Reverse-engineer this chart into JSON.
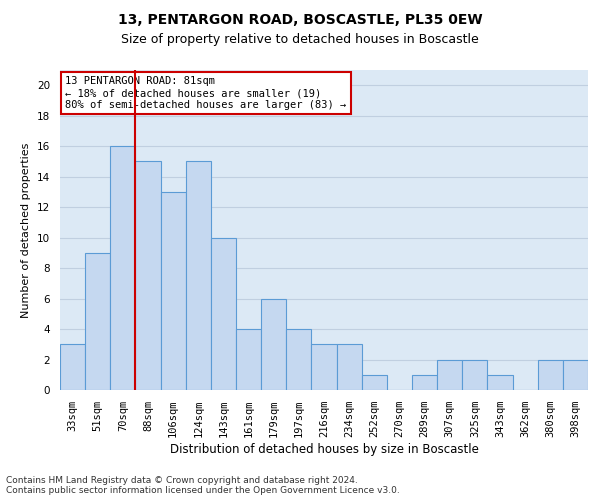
{
  "title": "13, PENTARGON ROAD, BOSCASTLE, PL35 0EW",
  "subtitle": "Size of property relative to detached houses in Boscastle",
  "xlabel": "Distribution of detached houses by size in Boscastle",
  "ylabel": "Number of detached properties",
  "categories": [
    "33sqm",
    "51sqm",
    "70sqm",
    "88sqm",
    "106sqm",
    "124sqm",
    "143sqm",
    "161sqm",
    "179sqm",
    "197sqm",
    "216sqm",
    "234sqm",
    "252sqm",
    "270sqm",
    "289sqm",
    "307sqm",
    "325sqm",
    "343sqm",
    "362sqm",
    "380sqm",
    "398sqm"
  ],
  "values": [
    3,
    9,
    16,
    15,
    13,
    15,
    10,
    4,
    6,
    4,
    3,
    3,
    1,
    0,
    1,
    2,
    2,
    1,
    0,
    2,
    2
  ],
  "bar_color": "#c5d8f0",
  "bar_edgecolor": "#5b9bd5",
  "vline_x": 2.5,
  "vline_color": "#cc0000",
  "annotation_text": "13 PENTARGON ROAD: 81sqm\n← 18% of detached houses are smaller (19)\n80% of semi-detached houses are larger (83) →",
  "annotation_box_facecolor": "#ffffff",
  "annotation_box_edgecolor": "#cc0000",
  "ylim": [
    0,
    21
  ],
  "yticks": [
    0,
    2,
    4,
    6,
    8,
    10,
    12,
    14,
    16,
    18,
    20
  ],
  "grid_color": "#c0cfe0",
  "background_color": "#dce9f5",
  "footer_text": "Contains HM Land Registry data © Crown copyright and database right 2024.\nContains public sector information licensed under the Open Government Licence v3.0.",
  "title_fontsize": 10,
  "subtitle_fontsize": 9,
  "xlabel_fontsize": 8.5,
  "ylabel_fontsize": 8,
  "tick_fontsize": 7.5,
  "annotation_fontsize": 7.5,
  "footer_fontsize": 6.5
}
